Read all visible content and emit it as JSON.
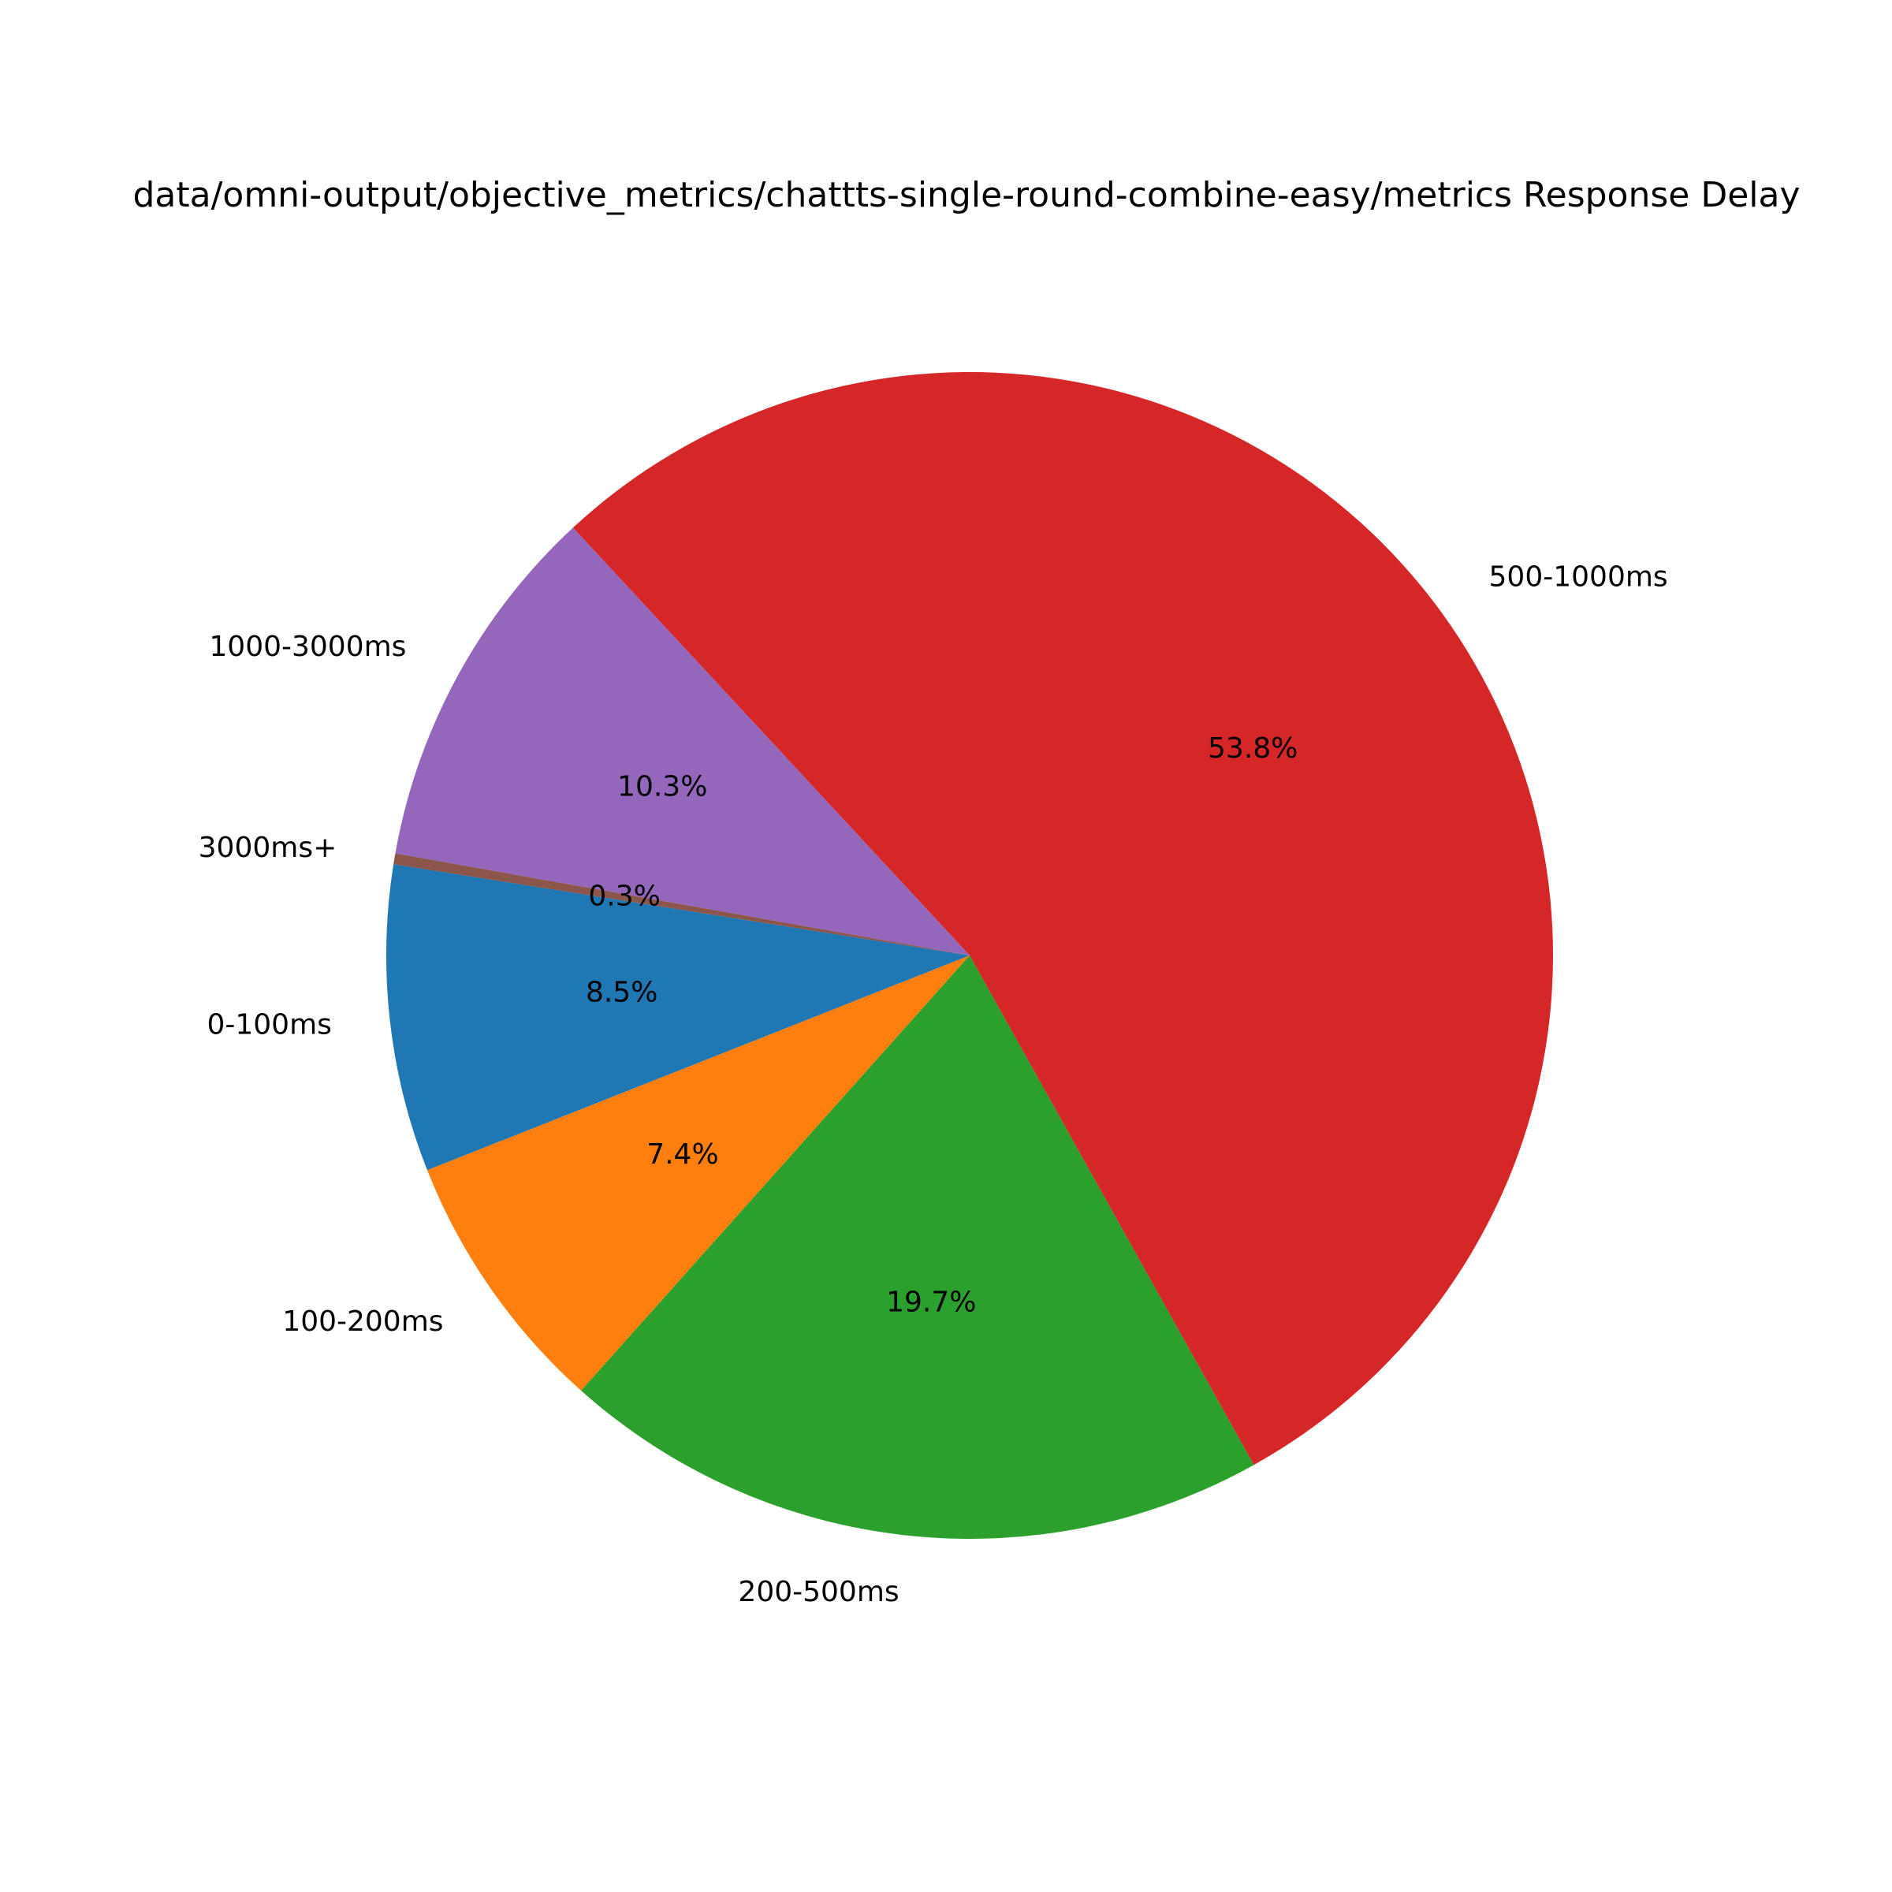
{
  "chart_data": {
    "type": "pie",
    "title": "data/omni-output/objective_metrics/chattts-single-round-combine-easy/metrics Response Delay",
    "start_angle_deg": 171,
    "direction": "counterclockwise",
    "slices": [
      {
        "label": "0-100ms",
        "value": 8.5,
        "pct_label": "8.5%",
        "color": "#1f77b4"
      },
      {
        "label": "100-200ms",
        "value": 7.4,
        "pct_label": "7.4%",
        "color": "#ff7f0e"
      },
      {
        "label": "200-500ms",
        "value": 19.7,
        "pct_label": "19.7%",
        "color": "#2ca02c"
      },
      {
        "label": "500-1000ms",
        "value": 53.8,
        "pct_label": "53.8%",
        "color": "#d62728"
      },
      {
        "label": "1000-3000ms",
        "value": 10.3,
        "pct_label": "10.3%",
        "color": "#9467bd"
      },
      {
        "label": "3000ms+",
        "value": 0.3,
        "pct_label": "0.3%",
        "color": "#8c564b"
      }
    ]
  }
}
